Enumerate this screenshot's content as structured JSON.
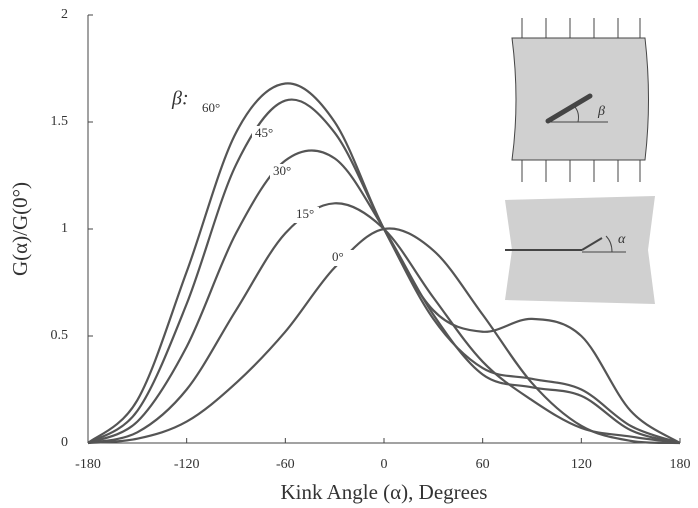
{
  "chart_data": {
    "type": "line",
    "x_label": "Kink Angle (α), Degrees",
    "y_label": "G(α)/G(0°)",
    "x": [
      -180,
      -150,
      -120,
      -90,
      -60,
      -30,
      0,
      30,
      60,
      90,
      120,
      150,
      180
    ],
    "series": [
      {
        "name": "0°",
        "color": "#555555",
        "values": [
          0,
          0.02,
          0.1,
          0.28,
          0.52,
          0.82,
          1,
          0.9,
          0.6,
          0.28,
          0.08,
          0.01,
          0
        ]
      },
      {
        "name": "15°",
        "color": "#555555",
        "values": [
          0,
          0.05,
          0.25,
          0.62,
          0.98,
          1.12,
          1,
          0.68,
          0.38,
          0.2,
          0.07,
          0.03,
          0
        ]
      },
      {
        "name": "30°",
        "color": "#555555",
        "values": [
          0,
          0.1,
          0.45,
          0.98,
          1.32,
          1.33,
          1,
          0.6,
          0.32,
          0.26,
          0.22,
          0.06,
          0
        ]
      },
      {
        "name": "45°",
        "color": "#555555",
        "values": [
          0,
          0.15,
          0.65,
          1.3,
          1.6,
          1.45,
          1,
          0.58,
          0.35,
          0.3,
          0.25,
          0.08,
          0
        ]
      },
      {
        "name": "60°",
        "color": "#555555",
        "values": [
          0,
          0.2,
          0.8,
          1.45,
          1.68,
          1.5,
          1,
          0.62,
          0.52,
          0.58,
          0.5,
          0.15,
          0
        ]
      }
    ],
    "annotations": [
      "β:",
      "β",
      "α"
    ],
    "xlim": [
      -180,
      180
    ],
    "xticks": [
      -180,
      -120,
      -60,
      0,
      60,
      120,
      180
    ],
    "ylim": [
      0,
      2
    ],
    "yticks": [
      0,
      0.5,
      1,
      1.5,
      2
    ]
  }
}
